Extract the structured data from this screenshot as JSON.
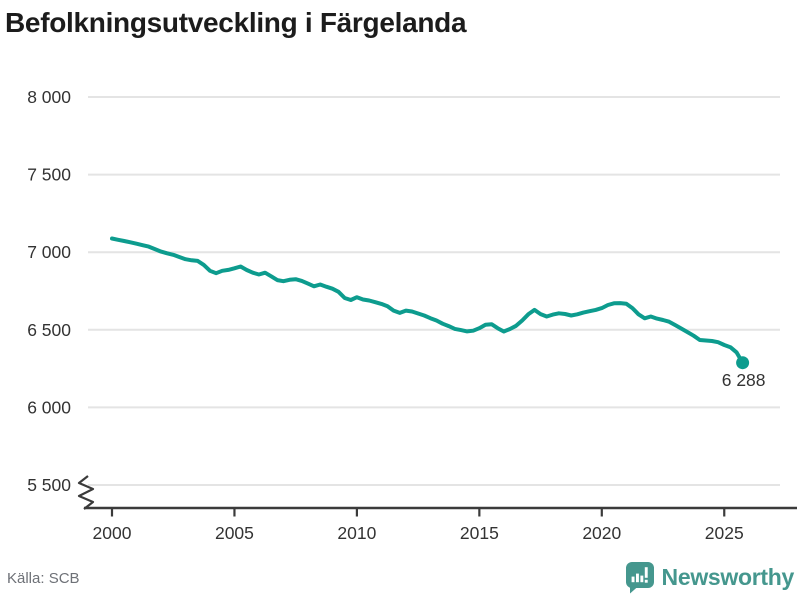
{
  "header": {
    "title": "Befolkningsutveckling i Färgelanda"
  },
  "footer": {
    "source": "Källa: SCB",
    "brand": "Newsworthy"
  },
  "colors": {
    "line": "#0d9c8e",
    "grid": "#e4e4e4",
    "axis": "#3b3b3b",
    "tick_text": "#333333",
    "muted_text": "#6e7177",
    "brand_teal": "#45978e",
    "background": "#ffffff"
  },
  "chart_data": {
    "type": "line",
    "title": "Befolkningsutveckling i Färgelanda",
    "xlabel": "",
    "ylabel": "",
    "x_start_year": 2000,
    "x_step_years": 0.25,
    "x_ticks": [
      2000,
      2005,
      2010,
      2015,
      2020,
      2025
    ],
    "y_ticks": [
      8000,
      7500,
      7000,
      6500,
      6000,
      5500
    ],
    "y_tick_labels": [
      "8 000",
      "7 500",
      "7 000",
      "6 500",
      "6 000",
      "5 500"
    ],
    "ylim": [
      5500,
      8000
    ],
    "axis_break_to_zero": true,
    "grid": "horizontal",
    "legend": "none",
    "values": [
      7088,
      7080,
      7072,
      7064,
      7055,
      7045,
      7036,
      7020,
      7004,
      6993,
      6983,
      6969,
      6955,
      6948,
      6944,
      6918,
      6880,
      6865,
      6880,
      6886,
      6896,
      6908,
      6885,
      6868,
      6856,
      6868,
      6845,
      6820,
      6813,
      6822,
      6826,
      6815,
      6798,
      6780,
      6792,
      6778,
      6765,
      6745,
      6705,
      6692,
      6710,
      6695,
      6689,
      6678,
      6667,
      6652,
      6624,
      6609,
      6624,
      6618,
      6605,
      6592,
      6575,
      6560,
      6539,
      6524,
      6506,
      6498,
      6490,
      6494,
      6510,
      6532,
      6536,
      6510,
      6489,
      6505,
      6526,
      6560,
      6600,
      6628,
      6601,
      6586,
      6598,
      6606,
      6602,
      6592,
      6600,
      6611,
      6620,
      6628,
      6640,
      6660,
      6671,
      6672,
      6668,
      6640,
      6600,
      6574,
      6586,
      6572,
      6563,
      6552,
      6530,
      6508,
      6485,
      6462,
      6434,
      6431,
      6428,
      6420,
      6402,
      6388,
      6355,
      6288
    ],
    "end_point": {
      "year": 2025.75,
      "value": 6288,
      "label": "6 288"
    }
  }
}
